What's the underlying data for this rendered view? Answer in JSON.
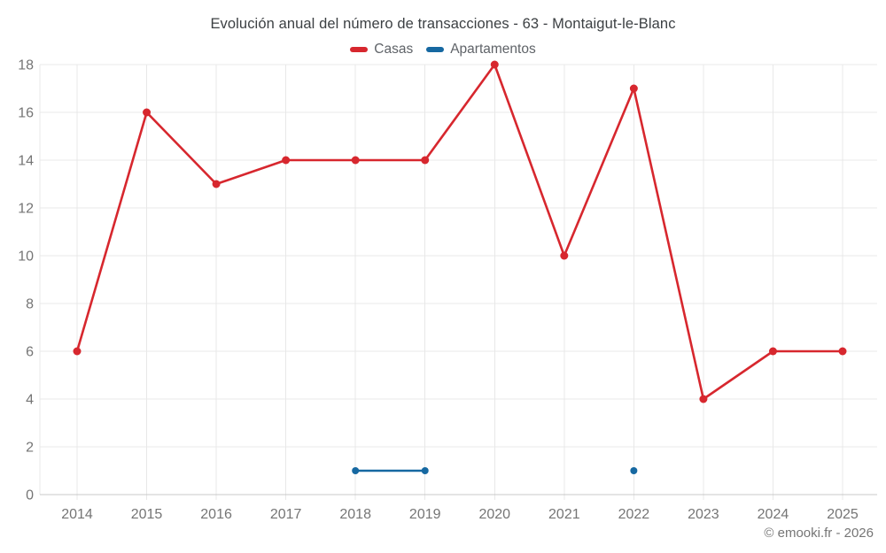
{
  "title": "Evolución anual del número de transacciones - 63 - Montaigut-le-Blanc",
  "copyright": "© emooki.fr - 2026",
  "chart_data": {
    "type": "line",
    "title": "Evolución anual del número de transacciones - 63 - Montaigut-le-Blanc",
    "x": [
      2014,
      2015,
      2016,
      2017,
      2018,
      2019,
      2020,
      2021,
      2022,
      2023,
      2024,
      2025
    ],
    "series": [
      {
        "name": "Casas",
        "color": "#d7272e",
        "values": [
          6,
          16,
          13,
          14,
          14,
          14,
          18,
          10,
          17,
          4,
          6,
          6
        ]
      },
      {
        "name": "Apartamentos",
        "color": "#1668a1",
        "values": [
          null,
          null,
          null,
          null,
          1,
          1,
          null,
          null,
          1,
          null,
          null,
          null
        ]
      }
    ],
    "xlabel": "",
    "ylabel": "",
    "ylim": [
      0,
      18
    ],
    "ytick_step": 2,
    "yticks": [
      0,
      2,
      4,
      6,
      8,
      10,
      12,
      14,
      16,
      18
    ],
    "grid": true,
    "legend_position": "top",
    "axis_label_color": "#757575",
    "grid_color": "#e8e8e8",
    "axis_line_color": "#c9c9c9"
  }
}
